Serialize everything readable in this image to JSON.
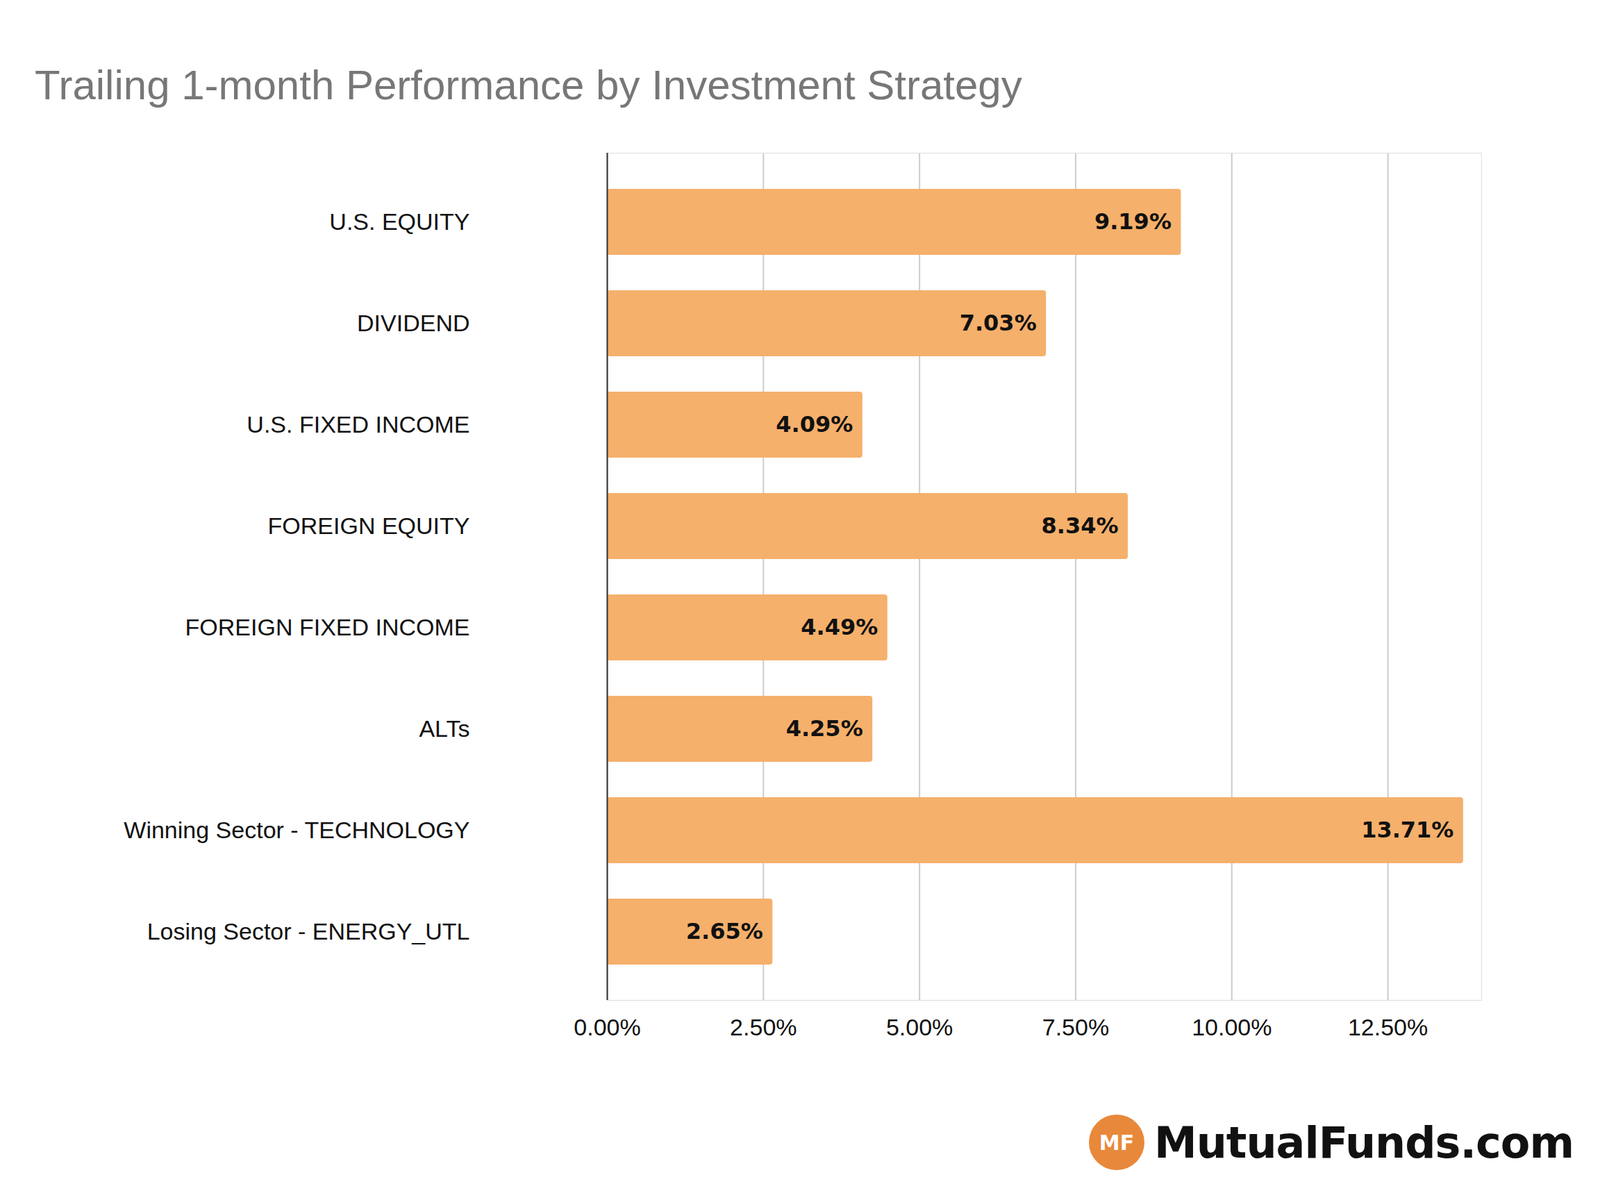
{
  "chart_data": {
    "type": "bar",
    "title": "Trailing 1-month Performance by Investment Strategy",
    "orientation": "horizontal",
    "categories": [
      "U.S. EQUITY",
      "DIVIDEND",
      "U.S. FIXED INCOME",
      "FOREIGN EQUITY",
      "FOREIGN FIXED INCOME",
      "ALTs",
      "Winning Sector - TECHNOLOGY",
      "Losing Sector - ENERGY_UTL"
    ],
    "values": [
      9.19,
      7.03,
      4.09,
      8.34,
      4.49,
      4.25,
      13.71,
      2.65
    ],
    "value_labels": [
      "9.19%",
      "7.03%",
      "4.09%",
      "8.34%",
      "4.49%",
      "4.25%",
      "13.71%",
      "2.65%"
    ],
    "data_labels": true,
    "color": "#f5b06b",
    "xlim": [
      0,
      14
    ],
    "xticks": [
      {
        "value": 0,
        "label": "0.00%"
      },
      {
        "value": 2.5,
        "label": "2.50%"
      },
      {
        "value": 5,
        "label": "5.00%"
      },
      {
        "value": 7.5,
        "label": "7.50%"
      },
      {
        "value": 10,
        "label": "10.00%"
      },
      {
        "value": 12.5,
        "label": "12.50%"
      }
    ],
    "grid": true,
    "source_badge": "MF",
    "source": "MutualFunds.com"
  }
}
